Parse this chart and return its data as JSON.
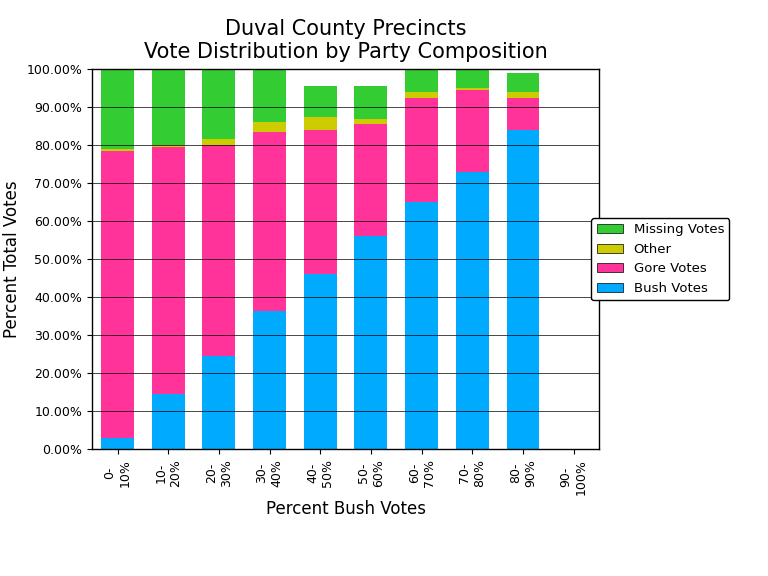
{
  "title": "Duval County Precincts\nVote Distribution by Party Composition",
  "xlabel": "Percent Bush Votes",
  "ylabel": "Percent Total Votes",
  "x_labels": [
    "0-\n10%",
    "10-\n20%",
    "20-\n30%",
    "30-\n40%",
    "40-\n50%",
    "50-\n60%",
    "60-\n70%",
    "70-\n80%",
    "80-\n90%",
    "90-\n100%"
  ],
  "bush_votes": [
    3.0,
    14.5,
    24.5,
    36.5,
    46.0,
    56.0,
    65.0,
    73.0,
    84.0,
    0.0
  ],
  "gore_votes": [
    75.5,
    65.0,
    55.5,
    47.0,
    38.0,
    29.5,
    27.5,
    21.5,
    8.5,
    0.0
  ],
  "other_votes": [
    0.5,
    0.5,
    1.5,
    2.5,
    3.5,
    1.5,
    1.5,
    0.5,
    1.5,
    0.0
  ],
  "missing_votes": [
    21.0,
    20.0,
    18.5,
    14.0,
    8.0,
    8.5,
    6.0,
    5.0,
    5.0,
    0.0
  ],
  "bush_color": "#00AAFF",
  "gore_color": "#FF3399",
  "other_color": "#CCCC00",
  "missing_color": "#33CC33",
  "background_color": "#FFFFFF",
  "ylim": [
    0,
    100
  ],
  "yticks": [
    0,
    10,
    20,
    30,
    40,
    50,
    60,
    70,
    80,
    90,
    100
  ],
  "ytick_labels": [
    "0.00%",
    "10.00%",
    "20.00%",
    "30.00%",
    "40.00%",
    "50.00%",
    "60.00%",
    "70.00%",
    "80.00%",
    "90.00%",
    "100.00%"
  ],
  "bar_width": 0.65,
  "legend_labels": [
    "Missing Votes",
    "Other",
    "Gore Votes",
    "Bush Votes"
  ],
  "legend_colors": [
    "#33CC33",
    "#CCCC00",
    "#FF3399",
    "#00AAFF"
  ],
  "title_fontsize": 15,
  "axis_label_fontsize": 12,
  "tick_fontsize": 9
}
